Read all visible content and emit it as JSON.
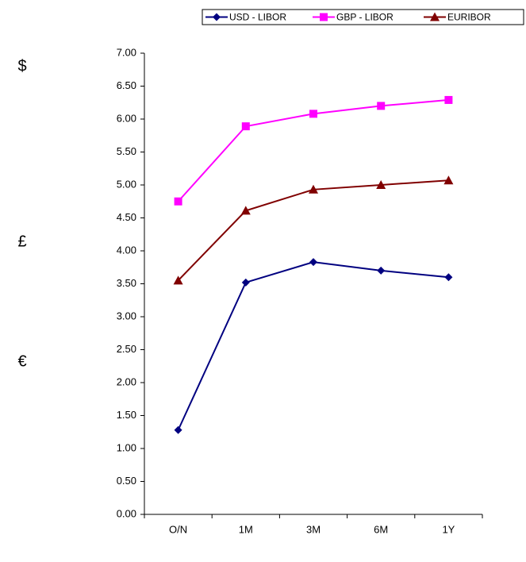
{
  "chart_data": {
    "type": "line",
    "categories": [
      "O/N",
      "1M",
      "3M",
      "6M",
      "1Y"
    ],
    "series": [
      {
        "name": "USD - LIBOR",
        "color": "#000080",
        "marker": "diamond",
        "values": [
          1.28,
          3.52,
          3.83,
          3.7,
          3.6
        ]
      },
      {
        "name": "GBP - LIBOR",
        "color": "#ff00ff",
        "marker": "square",
        "values": [
          4.75,
          5.89,
          6.08,
          6.2,
          6.29
        ]
      },
      {
        "name": "EURIBOR",
        "color": "#800000",
        "marker": "triangle",
        "values": [
          3.55,
          4.61,
          4.93,
          5.0,
          5.07
        ]
      }
    ],
    "ylim": [
      0,
      7
    ],
    "yticks": [
      {
        "value": 0,
        "label": "0.00"
      },
      {
        "value": 0.5,
        "label": "0.50"
      },
      {
        "value": 1,
        "label": "1.00"
      },
      {
        "value": 1.5,
        "label": "1.50"
      },
      {
        "value": 2,
        "label": "2.00"
      },
      {
        "value": 2.5,
        "label": "2.50"
      },
      {
        "value": 3,
        "label": "3.00"
      },
      {
        "value": 3.5,
        "label": "3.50"
      },
      {
        "value": 4,
        "label": "4.00"
      },
      {
        "value": 4.5,
        "label": "4.50"
      },
      {
        "value": 5,
        "label": "5.00"
      },
      {
        "value": 5.5,
        "label": "5.50"
      },
      {
        "value": 6,
        "label": "6.00"
      },
      {
        "value": 6.5,
        "label": "6.50"
      },
      {
        "value": 7,
        "label": "7.00"
      }
    ],
    "grid": false,
    "legend": "top-right",
    "annotations": [
      "$",
      "£",
      "€"
    ]
  }
}
